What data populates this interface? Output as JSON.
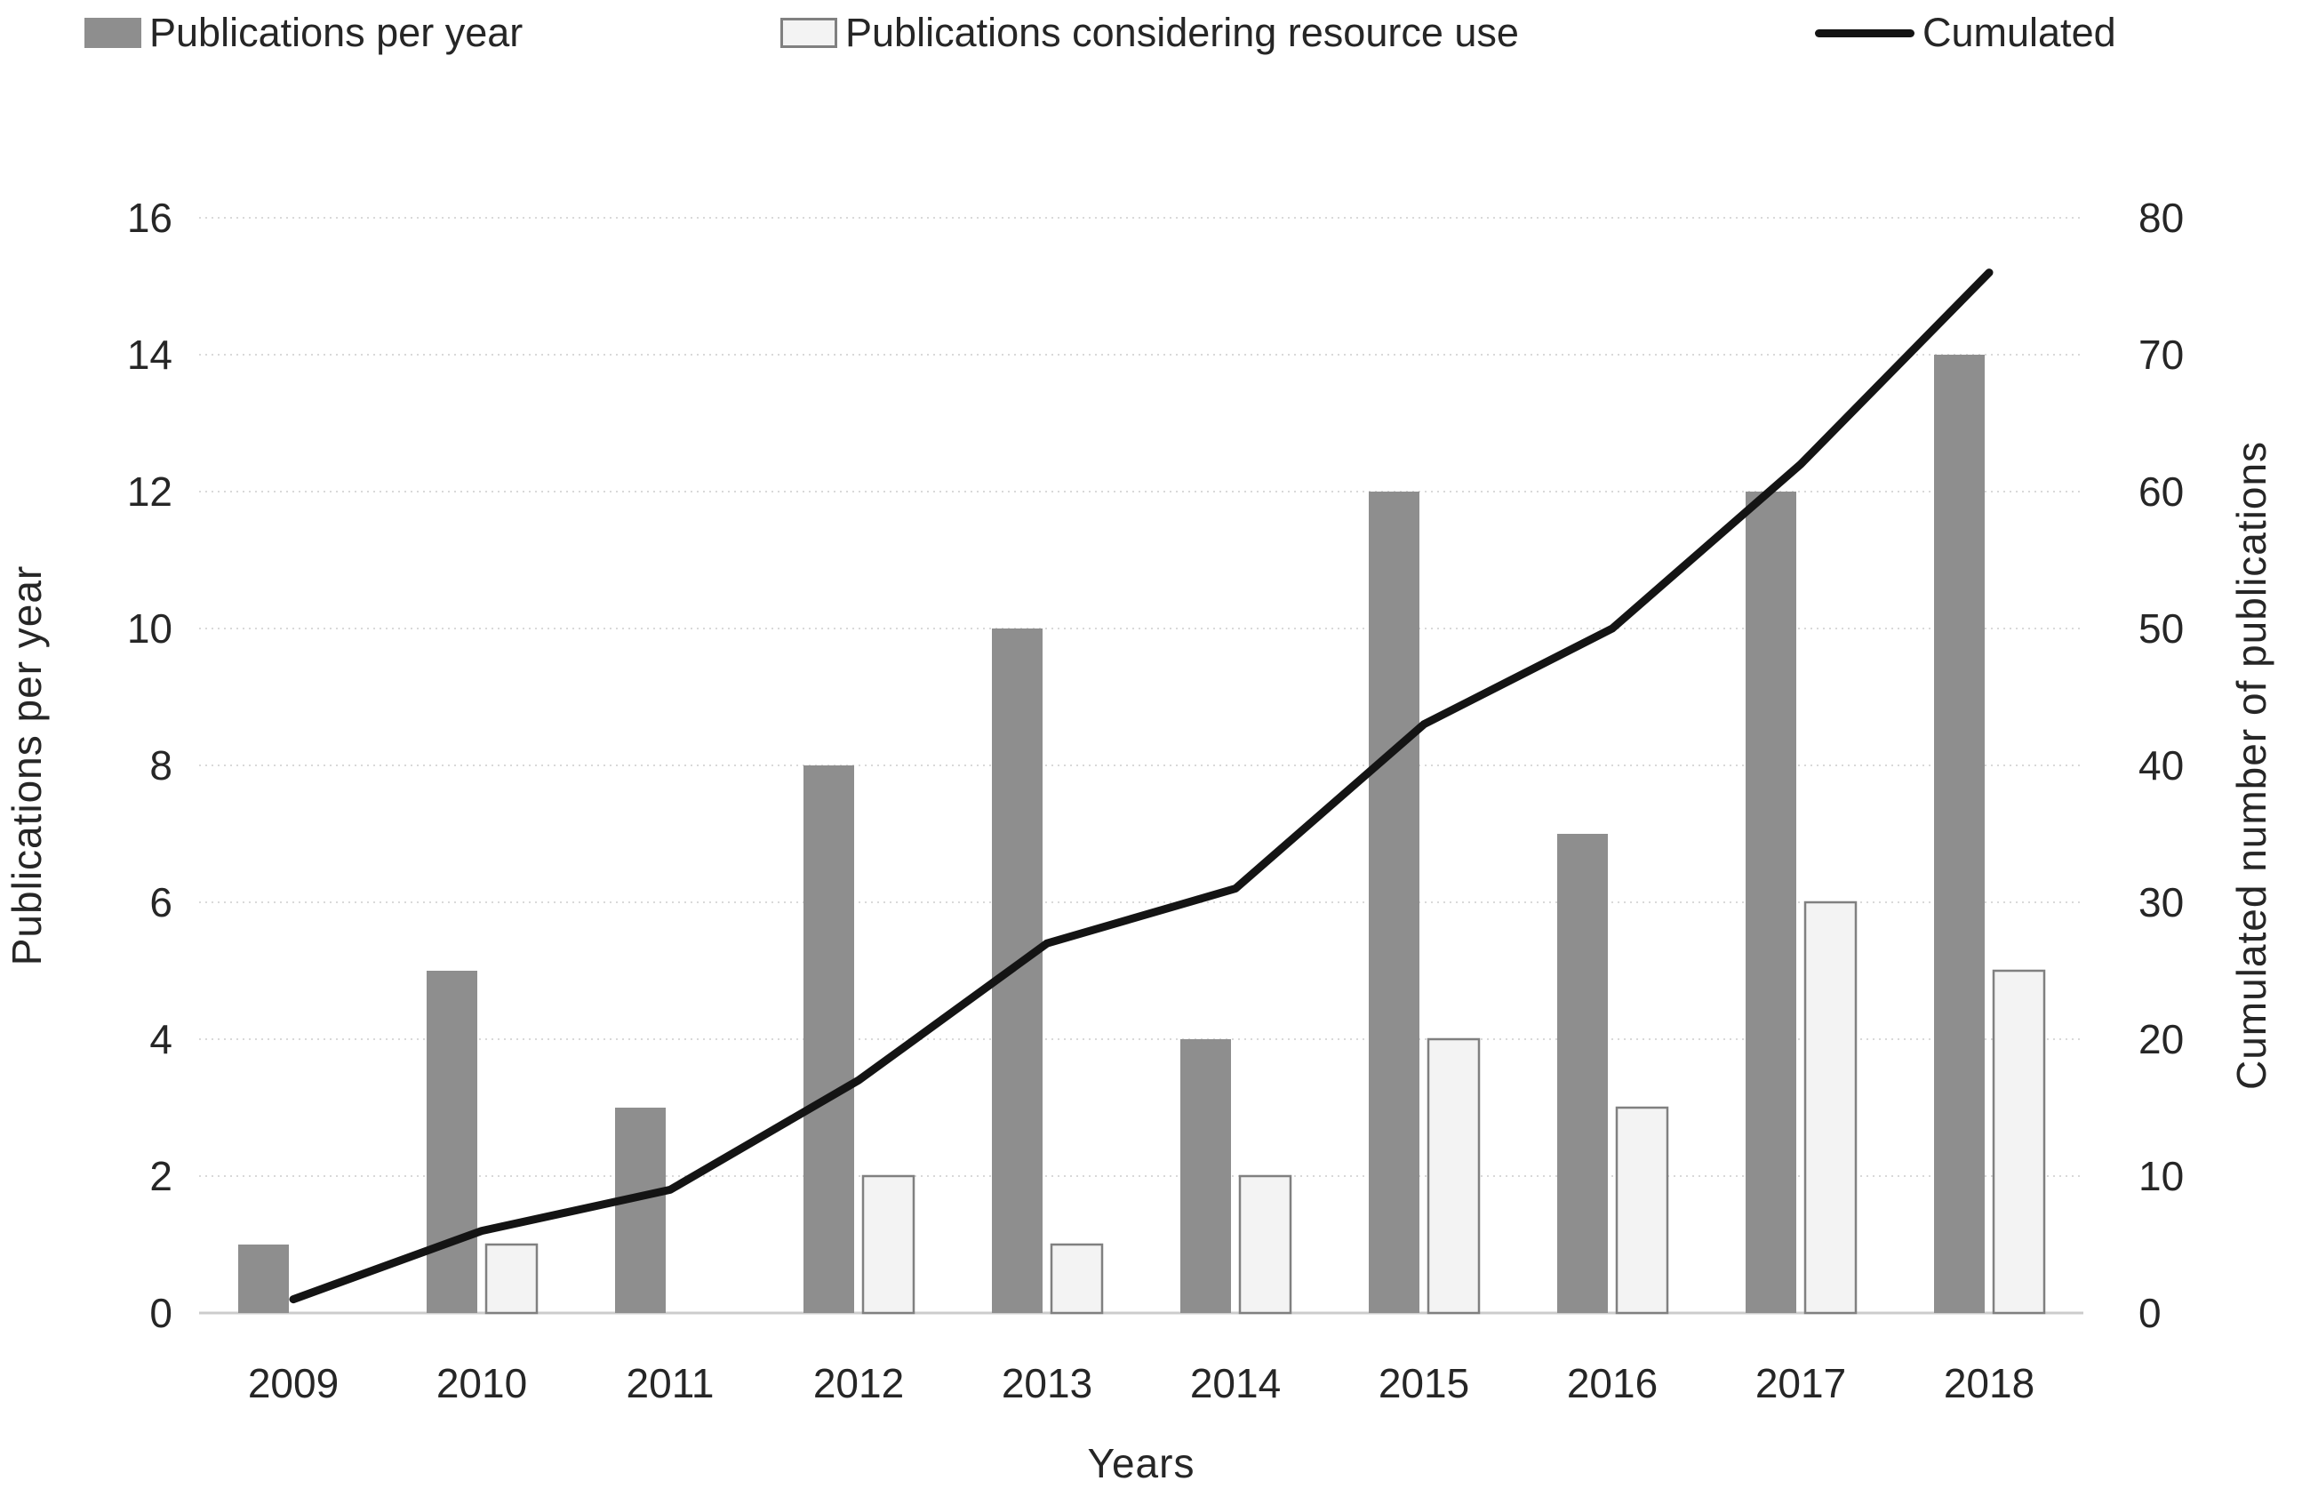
{
  "chart_data": {
    "type": "combo",
    "title": "",
    "categories": [
      "2009",
      "2010",
      "2011",
      "2012",
      "2013",
      "2014",
      "2015",
      "2016",
      "2017",
      "2018"
    ],
    "series": [
      {
        "name": "Publications per year",
        "type": "bar",
        "axis": "left",
        "fill": "#8e8e8e",
        "values": [
          1,
          5,
          3,
          8,
          10,
          4,
          12,
          7,
          12,
          14
        ]
      },
      {
        "name": "Publications considering resource use",
        "type": "bar",
        "axis": "left",
        "fill": "#f3f3f3",
        "stroke": "#808080",
        "values": [
          0,
          1,
          0,
          2,
          1,
          2,
          4,
          3,
          6,
          5
        ]
      },
      {
        "name": "Cumulated",
        "type": "line",
        "axis": "right",
        "stroke": "#141414",
        "values": [
          1,
          6,
          9,
          17,
          27,
          31,
          43,
          50,
          62,
          76
        ]
      }
    ],
    "x_axis": {
      "title": "Years"
    },
    "left_axis": {
      "title": "Publications per year",
      "min": 0,
      "max": 16,
      "step": 2,
      "ticks": [
        0,
        2,
        4,
        6,
        8,
        10,
        12,
        14,
        16
      ]
    },
    "right_axis": {
      "title": "Cumulated number of publications",
      "min": 0,
      "max": 80,
      "step": 10,
      "ticks": [
        0,
        10,
        20,
        30,
        40,
        50,
        60,
        70,
        80
      ]
    },
    "legend": {
      "position": "top",
      "entries": [
        "Publications per year",
        "Publications considering resource use",
        "Cumulated"
      ]
    },
    "grid": true,
    "colors": {
      "grid": "#d9d9d9",
      "axis_line": "#cccccc",
      "text": "#262626",
      "background": "#ffffff"
    }
  }
}
